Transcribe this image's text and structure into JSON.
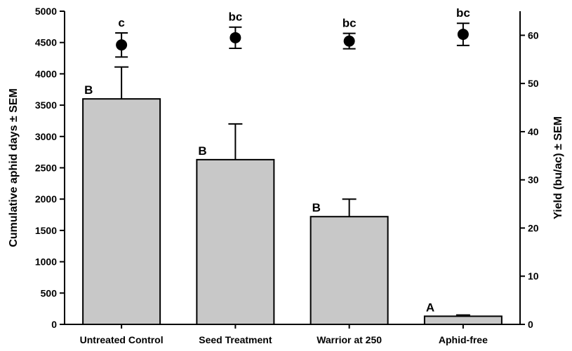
{
  "chart_data": {
    "type": "bar",
    "title": "",
    "categories": [
      "Untreated Control",
      "Seed Treatment",
      "Warrior at 250",
      "Aphid-free"
    ],
    "bars": {
      "axis": "left",
      "values": [
        3600,
        2630,
        1720,
        130
      ],
      "errors": [
        510,
        570,
        280,
        20
      ],
      "letters": [
        "B",
        "B",
        "B",
        "A"
      ],
      "color": "#c8c8c8"
    },
    "points": {
      "axis": "right",
      "values": [
        58,
        59.5,
        58.8,
        60.2
      ],
      "errors": [
        2.5,
        2.2,
        1.6,
        2.3
      ],
      "letters": [
        "c",
        "bc",
        "bc",
        "bc"
      ],
      "color": "#000000"
    },
    "ylabel": "Cumulative aphid days ± SEM",
    "ylim": [
      0,
      5000
    ],
    "yticks": [
      0,
      500,
      1000,
      1500,
      2000,
      2500,
      3000,
      3500,
      4000,
      4500,
      5000
    ],
    "y2label": "Yield (bu/ac) ± SEM",
    "y2lim": [
      0,
      65
    ],
    "y2ticks": [
      0,
      10,
      20,
      30,
      40,
      50,
      60
    ],
    "grid": false,
    "legend": "none"
  }
}
